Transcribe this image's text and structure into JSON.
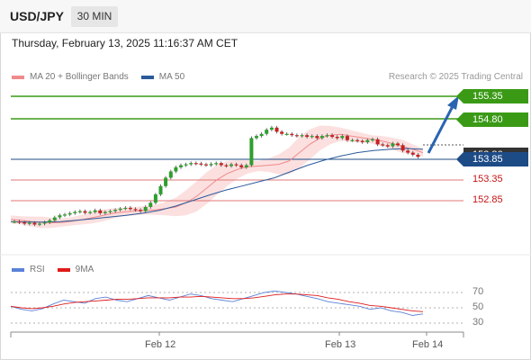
{
  "header": {
    "symbol": "USD/JPY",
    "timeframe": "30 MIN"
  },
  "datetime": "Thursday, February 13, 2025 11:16:37 AM CET",
  "legend": {
    "ma_bb_label": "MA 20 + Bollinger Bands",
    "ma50_label": "MA 50",
    "ma_bb_color": "#f08a8a",
    "ma50_color": "#2b5a9a"
  },
  "credit": "Research © 2025 Trading Central",
  "rsi_legend": {
    "rsi_label": "RSI",
    "ma9_label": "9MA",
    "rsi_color": "#5b82d8",
    "ma9_color": "#e01b1b"
  },
  "levels": {
    "resistance2": "155.35",
    "resistance1": "154.80",
    "pivot": "153.85",
    "support1": "153.35",
    "support2": "152.85",
    "current_price": "153.86"
  },
  "rsi_levels": {
    "upper": "70",
    "mid_upper": "50",
    "mid": "50",
    "lower": "30"
  },
  "x_labels": [
    "Feb 12",
    "Feb 13",
    "Feb 14"
  ],
  "colors": {
    "resistance": "#3a9a16",
    "pivot": "#1d4b86",
    "support": "#c51515",
    "arrow": "#2a64b0",
    "bull": "#2e9e2e",
    "bear": "#c62222",
    "bb_fill": "#fbdada"
  },
  "chart_data": {
    "type": "candlestick",
    "title": "USD/JPY 30 MIN",
    "series": [
      {
        "name": "USD/JPY",
        "values": [
          152.35,
          152.33,
          152.3,
          152.32,
          152.28,
          152.3,
          152.33,
          152.38,
          152.45,
          152.5,
          152.52,
          152.55,
          152.58,
          152.6,
          152.56,
          152.58,
          152.62,
          152.55,
          152.58,
          152.6,
          152.63,
          152.66,
          152.68,
          152.65,
          152.63,
          152.6,
          152.7,
          152.8,
          153.0,
          153.2,
          153.4,
          153.55,
          153.65,
          153.7,
          153.72,
          153.75,
          153.74,
          153.72,
          153.7,
          153.73,
          153.75,
          153.7,
          153.68,
          153.72,
          153.7,
          153.65,
          153.7,
          154.35,
          154.4,
          154.45,
          154.55,
          154.6,
          154.5,
          154.45,
          154.45,
          154.42,
          154.4,
          154.42,
          154.38,
          154.4,
          154.35,
          154.4,
          154.42,
          154.38,
          154.35,
          154.4,
          154.3,
          154.3,
          154.28,
          154.25,
          154.3,
          154.32,
          154.2,
          154.18,
          154.15,
          154.22,
          154.18,
          154.05,
          154.0,
          153.95,
          153.9
        ]
      },
      {
        "name": "MA 20",
        "values": [
          152.4,
          152.38,
          152.35,
          152.33,
          152.32,
          152.33,
          152.36,
          152.4,
          152.45,
          152.5,
          152.55,
          152.58,
          152.6,
          152.62,
          152.63,
          152.66,
          152.7,
          152.8,
          152.95,
          153.15,
          153.35,
          153.5,
          153.6,
          153.66,
          153.68,
          153.7,
          153.72,
          153.8,
          154.0,
          154.2,
          154.35,
          154.42,
          154.44,
          154.4,
          154.36,
          154.32,
          154.28,
          154.22,
          154.15,
          154.08,
          154.0
        ]
      },
      {
        "name": "MA 50",
        "values": [
          152.35,
          152.34,
          152.34,
          152.35,
          152.38,
          152.42,
          152.46,
          152.5,
          152.55,
          152.62,
          152.72,
          152.85,
          152.98,
          153.1,
          153.2,
          153.3,
          153.4,
          153.55,
          153.7,
          153.82,
          153.92,
          154.0,
          154.05,
          154.08,
          154.1,
          154.08
        ]
      }
    ],
    "rsi": {
      "name": "RSI",
      "values": [
        52,
        48,
        46,
        49,
        55,
        60,
        58,
        56,
        62,
        64,
        60,
        58,
        62,
        66,
        63,
        60,
        64,
        68,
        66,
        62,
        60,
        58,
        62,
        66,
        70,
        72,
        70,
        68,
        65,
        62,
        58,
        56,
        54,
        52,
        48,
        50,
        46,
        44,
        40,
        42
      ]
    },
    "rsi_ma9": {
      "name": "9MA",
      "values": [
        52,
        50,
        49,
        50,
        52,
        55,
        57,
        58,
        59,
        60,
        61,
        61,
        62,
        63,
        63,
        63,
        64,
        64,
        65,
        64,
        63,
        62,
        62,
        63,
        65,
        67,
        68,
        68,
        67,
        66,
        63,
        61,
        58,
        56,
        53,
        52,
        50,
        48,
        46,
        45
      ]
    },
    "ylim": [
      152.2,
      155.6
    ],
    "xlabel": "",
    "ylabel": ""
  }
}
